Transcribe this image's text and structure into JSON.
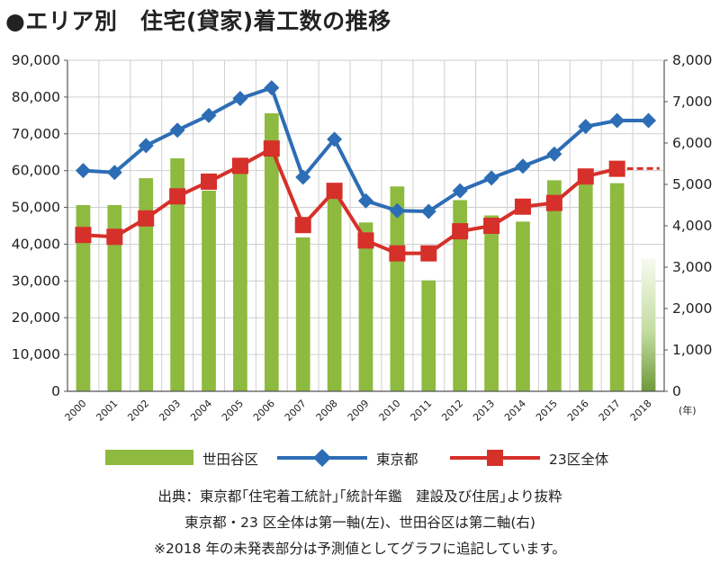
{
  "title": "●エリア別　住宅(貸家)着工数の推移",
  "chart_data": {
    "type": "bar+line",
    "categories": [
      "2000",
      "2001",
      "2002",
      "2003",
      "2004",
      "2005",
      "2006",
      "2007",
      "2008",
      "2009",
      "2010",
      "2011",
      "2012",
      "2013",
      "2014",
      "2015",
      "2016",
      "2017",
      "2018"
    ],
    "x_unit_label": "(年)",
    "left_axis": {
      "ylim": [
        0,
        90000
      ],
      "ticks": [
        "0",
        "10,000",
        "20,000",
        "30,000",
        "40,000",
        "50,000",
        "60,000",
        "70,000",
        "80,000",
        "90,000"
      ],
      "tick_values": [
        0,
        10000,
        20000,
        30000,
        40000,
        50000,
        60000,
        70000,
        80000,
        90000
      ]
    },
    "right_axis": {
      "ylim": [
        0,
        8000
      ],
      "ticks": [
        "0",
        "1,000",
        "2,000",
        "3,000",
        "4,000",
        "5,000",
        "6,000",
        "7,000",
        "8,000"
      ],
      "tick_values": [
        0,
        1000,
        2000,
        3000,
        4000,
        5000,
        6000,
        7000,
        8000
      ]
    },
    "grid": true,
    "series": [
      {
        "name": "世田谷区",
        "type": "bar",
        "axis": "right",
        "color": "#8dba3f",
        "values": [
          4500,
          4500,
          5150,
          5630,
          4850,
          5450,
          6720,
          3720,
          4750,
          4080,
          4950,
          2680,
          4620,
          4250,
          4100,
          5100,
          5150,
          5030,
          3200
        ],
        "forecast_index": 18
      },
      {
        "name": "東京都",
        "type": "line",
        "axis": "left",
        "color": "#2d6db5",
        "marker": "diamond",
        "values": [
          60000,
          59500,
          66800,
          71000,
          75000,
          79600,
          82500,
          58200,
          68500,
          51800,
          49100,
          48900,
          54500,
          58000,
          61200,
          64500,
          72000,
          73600,
          73600
        ]
      },
      {
        "name": "23区全体",
        "type": "line",
        "axis": "left",
        "color": "#d6302a",
        "marker": "square",
        "values": [
          42500,
          42000,
          47000,
          53000,
          57000,
          61300,
          66000,
          45200,
          54500,
          41000,
          37500,
          37500,
          43500,
          45000,
          50200,
          51200,
          58400,
          60500,
          60600
        ],
        "forecast_index": 18
      }
    ]
  },
  "notes": [
    "出典：東京都｢住宅着工統計｣｢統計年鑑　建設及び住居｣より抜粋",
    "東京都・23 区全体は第一軸(左)、世田谷区は第二軸(右)",
    "※2018 年の未発表部分は予測値としてグラフに追記しています。"
  ]
}
